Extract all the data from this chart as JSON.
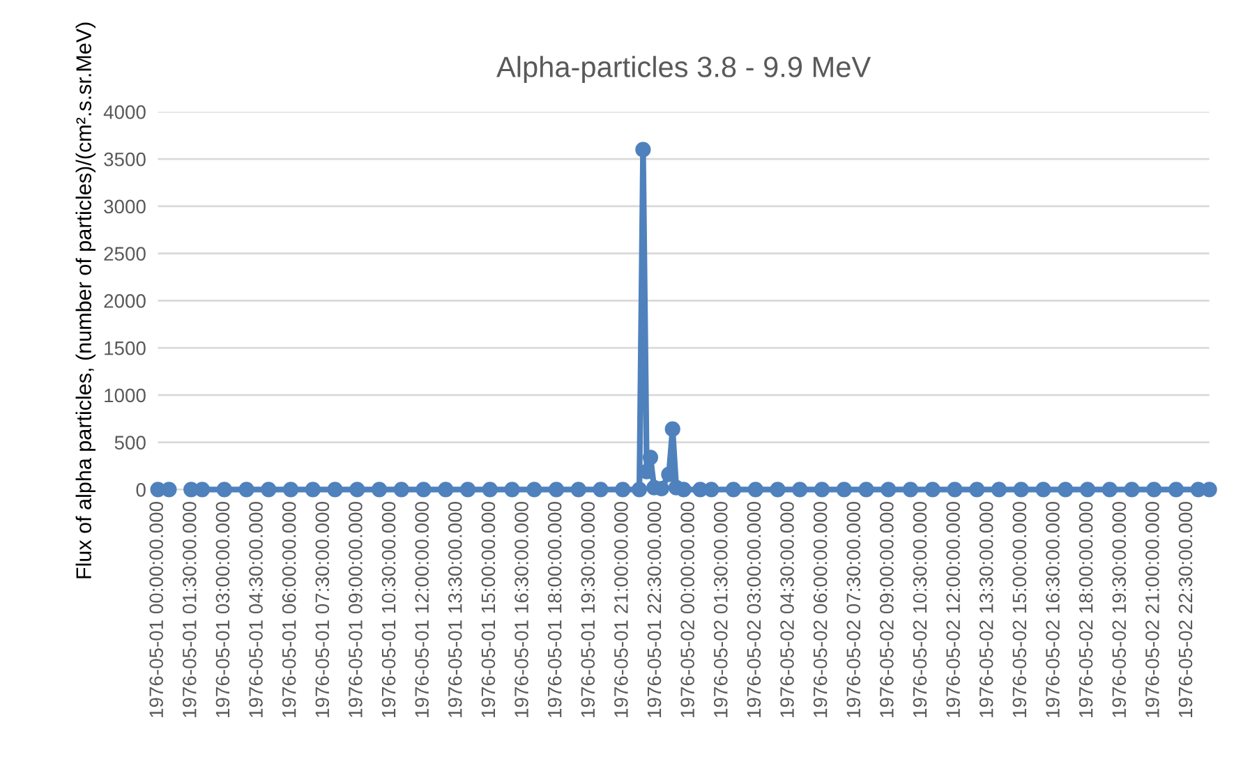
{
  "chart_data": {
    "type": "line",
    "title": "Alpha-particles 3.8 - 9.9 MeV",
    "ylabel": "Flux of alpha particles, (number of particles)/(cm².s.sr.MeV)",
    "x": [
      "1976-05-01T00:00",
      "1976-05-01T00:30",
      "1976-05-01T01:00",
      "1976-05-01T01:30",
      "1976-05-01T02:00",
      "1976-05-01T03:00",
      "1976-05-01T04:00",
      "1976-05-01T05:00",
      "1976-05-01T06:00",
      "1976-05-01T07:00",
      "1976-05-01T08:00",
      "1976-05-01T09:00",
      "1976-05-01T10:00",
      "1976-05-01T11:00",
      "1976-05-01T12:00",
      "1976-05-01T13:00",
      "1976-05-01T14:00",
      "1976-05-01T15:00",
      "1976-05-01T16:00",
      "1976-05-01T17:00",
      "1976-05-01T18:00",
      "1976-05-01T19:00",
      "1976-05-01T20:00",
      "1976-05-01T21:00",
      "1976-05-01T21:45",
      "1976-05-01T21:55",
      "1976-05-01T22:05",
      "1976-05-01T22:15",
      "1976-05-01T22:25",
      "1976-05-01T22:45",
      "1976-05-01T23:05",
      "1976-05-01T23:15",
      "1976-05-01T23:25",
      "1976-05-01T23:45",
      "1976-05-02T00:30",
      "1976-05-02T01:00",
      "1976-05-02T02:00",
      "1976-05-02T03:00",
      "1976-05-02T04:00",
      "1976-05-02T05:00",
      "1976-05-02T06:00",
      "1976-05-02T07:00",
      "1976-05-02T08:00",
      "1976-05-02T09:00",
      "1976-05-02T10:00",
      "1976-05-02T11:00",
      "1976-05-02T12:00",
      "1976-05-02T13:00",
      "1976-05-02T14:00",
      "1976-05-02T15:00",
      "1976-05-02T16:00",
      "1976-05-02T17:00",
      "1976-05-02T18:00",
      "1976-05-02T19:00",
      "1976-05-02T20:00",
      "1976-05-02T21:00",
      "1976-05-02T22:00",
      "1976-05-02T23:00",
      "1976-05-02T23:30"
    ],
    "series": [
      {
        "color": "#4f81bd",
        "values": [
          0,
          0,
          null,
          0,
          0,
          0,
          0,
          0,
          0,
          0,
          0,
          0,
          0,
          0,
          0,
          0,
          0,
          0,
          0,
          0,
          0,
          0,
          0,
          0,
          0,
          3600,
          190,
          340,
          20,
          10,
          160,
          640,
          20,
          0,
          0,
          0,
          0,
          0,
          0,
          0,
          0,
          0,
          0,
          0,
          0,
          0,
          0,
          0,
          0,
          0,
          0,
          0,
          0,
          0,
          0,
          0,
          0,
          0,
          0
        ]
      }
    ],
    "xlim": [
      "1976-05-01T00:00",
      "1976-05-02T23:30"
    ],
    "xticks": [
      {
        "value": "1976-05-01T00:00",
        "label": "1976-05-01 00:00:00.000"
      },
      {
        "value": "1976-05-01T01:30",
        "label": "1976-05-01 01:30:00.000"
      },
      {
        "value": "1976-05-01T03:00",
        "label": "1976-05-01 03:00:00.000"
      },
      {
        "value": "1976-05-01T04:30",
        "label": "1976-05-01 04:30:00.000"
      },
      {
        "value": "1976-05-01T06:00",
        "label": "1976-05-01 06:00:00.000"
      },
      {
        "value": "1976-05-01T07:30",
        "label": "1976-05-01 07:30:00.000"
      },
      {
        "value": "1976-05-01T09:00",
        "label": "1976-05-01 09:00:00.000"
      },
      {
        "value": "1976-05-01T10:30",
        "label": "1976-05-01 10:30:00.000"
      },
      {
        "value": "1976-05-01T12:00",
        "label": "1976-05-01 12:00:00.000"
      },
      {
        "value": "1976-05-01T13:30",
        "label": "1976-05-01 13:30:00.000"
      },
      {
        "value": "1976-05-01T15:00",
        "label": "1976-05-01 15:00:00.000"
      },
      {
        "value": "1976-05-01T16:30",
        "label": "1976-05-01 16:30:00.000"
      },
      {
        "value": "1976-05-01T18:00",
        "label": "1976-05-01 18:00:00.000"
      },
      {
        "value": "1976-05-01T19:30",
        "label": "1976-05-01 19:30:00.000"
      },
      {
        "value": "1976-05-01T21:00",
        "label": "1976-05-01 21:00:00.000"
      },
      {
        "value": "1976-05-01T22:30",
        "label": "1976-05-01 22:30:00.000"
      },
      {
        "value": "1976-05-02T00:00",
        "label": "1976-05-02 00:00:00.000"
      },
      {
        "value": "1976-05-02T01:30",
        "label": "1976-05-02 01:30:00.000"
      },
      {
        "value": "1976-05-02T03:00",
        "label": "1976-05-02 03:00:00.000"
      },
      {
        "value": "1976-05-02T04:30",
        "label": "1976-05-02 04:30:00.000"
      },
      {
        "value": "1976-05-02T06:00",
        "label": "1976-05-02 06:00:00.000"
      },
      {
        "value": "1976-05-02T07:30",
        "label": "1976-05-02 07:30:00.000"
      },
      {
        "value": "1976-05-02T09:00",
        "label": "1976-05-02 09:00:00.000"
      },
      {
        "value": "1976-05-02T10:30",
        "label": "1976-05-02 10:30:00.000"
      },
      {
        "value": "1976-05-02T12:00",
        "label": "1976-05-02 12:00:00.000"
      },
      {
        "value": "1976-05-02T13:30",
        "label": "1976-05-02 13:30:00.000"
      },
      {
        "value": "1976-05-02T15:00",
        "label": "1976-05-02 15:00:00.000"
      },
      {
        "value": "1976-05-02T16:30",
        "label": "1976-05-02 16:30:00.000"
      },
      {
        "value": "1976-05-02T18:00",
        "label": "1976-05-02 18:00:00.000"
      },
      {
        "value": "1976-05-02T19:30",
        "label": "1976-05-02 19:30:00.000"
      },
      {
        "value": "1976-05-02T21:00",
        "label": "1976-05-02 21:00:00.000"
      },
      {
        "value": "1976-05-02T22:30",
        "label": "1976-05-02 22:30:00.000"
      }
    ],
    "ylim": [
      0,
      4000
    ],
    "yticks": [
      0,
      500,
      1000,
      1500,
      2000,
      2500,
      3000,
      3500,
      4000
    ],
    "grid": "y",
    "marker": "circle",
    "line_style": "solid"
  }
}
